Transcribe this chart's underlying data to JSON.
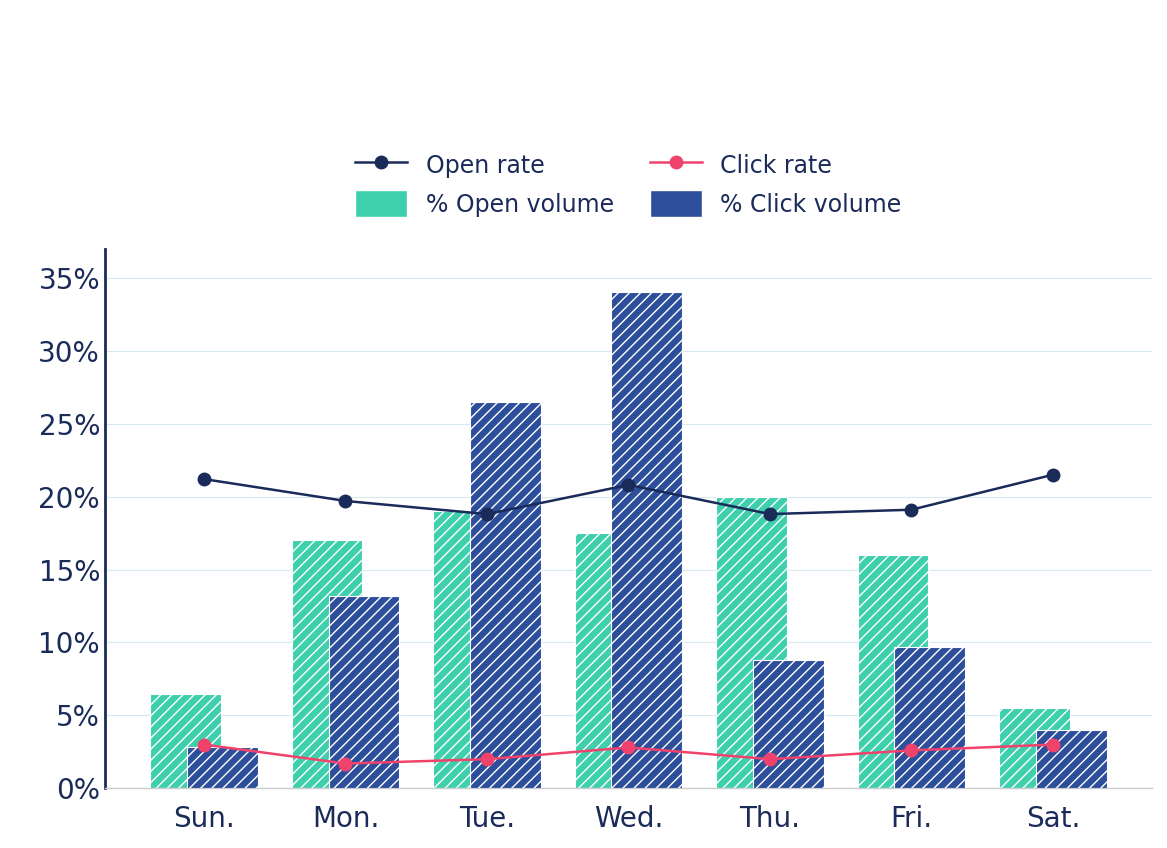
{
  "days": [
    "Sun.",
    "Mon.",
    "Tue.",
    "Wed.",
    "Thu.",
    "Fri.",
    "Sat."
  ],
  "open_volume": [
    6.5,
    17.0,
    19.0,
    17.5,
    20.0,
    16.0,
    5.5
  ],
  "click_volume": [
    2.8,
    13.2,
    26.5,
    34.0,
    8.8,
    9.7,
    4.0
  ],
  "open_rate": [
    21.2,
    19.7,
    18.8,
    20.8,
    18.8,
    19.1,
    21.5
  ],
  "click_rate": [
    3.0,
    1.7,
    2.0,
    2.8,
    2.0,
    2.6,
    3.0
  ],
  "open_volume_color": "#3ECFAD",
  "click_volume_color": "#2D4E9B",
  "open_rate_color": "#1A2B5A",
  "click_rate_color": "#F0436C",
  "ylim": [
    0,
    37
  ],
  "yticks": [
    0,
    5,
    10,
    15,
    20,
    25,
    30,
    35
  ],
  "background_color": "#ffffff",
  "grid_color": "#d8e8f0",
  "bar_width": 0.5,
  "hatch_pattern": "///",
  "spine_color": "#1A2B5A",
  "tick_label_color": "#1A2B5A",
  "tick_label_size": 20
}
